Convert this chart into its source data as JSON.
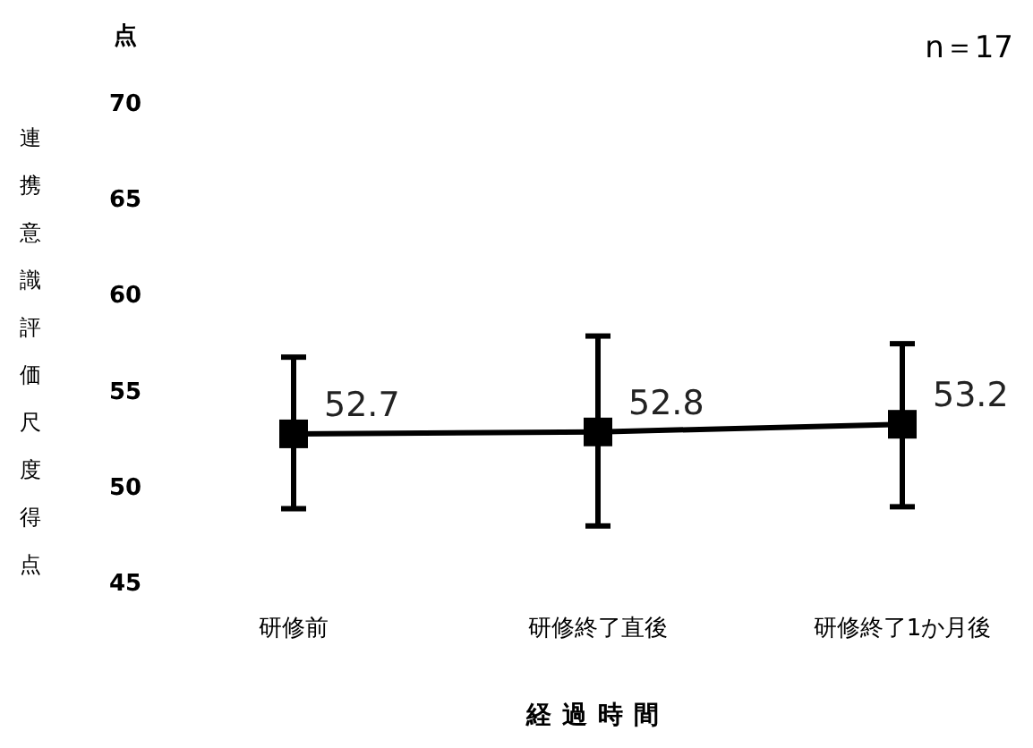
{
  "chart_data": {
    "type": "line",
    "xlabel": "経過時間",
    "ylabel": "連携意識評価尺度得点",
    "annotations": [
      "点",
      "n＝17"
    ],
    "categories": [
      "研修前",
      "研修終了直後",
      "研修終了1か月後"
    ],
    "series": [
      {
        "color": "#000000",
        "values": [
          52.7,
          52.8,
          53.2
        ],
        "errors": [
          [
            48.8,
            56.7
          ],
          [
            47.9,
            57.8
          ],
          [
            48.9,
            57.4
          ]
        ]
      }
    ],
    "ylim": [
      45,
      70
    ],
    "yticks": [
      45,
      50,
      55,
      60,
      65,
      70
    ],
    "data_labels": true,
    "marker": "square",
    "line_style": "solid",
    "grid": false
  }
}
